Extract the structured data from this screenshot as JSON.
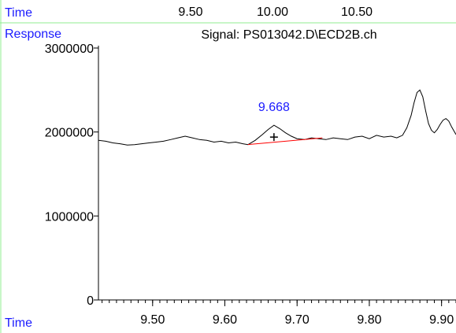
{
  "top_strip": {
    "time_label": "Time",
    "ticks": [
      9.5,
      10.0,
      10.5
    ],
    "tick_labels": [
      "9.50",
      "10.00",
      "10.50"
    ]
  },
  "chart_data": {
    "type": "line",
    "title": "Signal: PS013042.D\\ECD2B.ch",
    "ylabel": "Response",
    "xlabel": "Time",
    "xlim": [
      9.425,
      9.92
    ],
    "ylim": [
      0,
      3000000
    ],
    "x_ticks": [
      9.5,
      9.6,
      9.7,
      9.8,
      9.9
    ],
    "x_tick_labels": [
      "9.50",
      "9.60",
      "9.70",
      "9.80",
      "9.90"
    ],
    "y_ticks": [
      0,
      1000000,
      2000000,
      3000000
    ],
    "y_tick_labels": [
      "0",
      "1000000",
      "2000000",
      "3000000"
    ],
    "series": [
      {
        "x": [
          9.425,
          9.435,
          9.445,
          9.455,
          9.465,
          9.475,
          9.485,
          9.495,
          9.505,
          9.515,
          9.525,
          9.535,
          9.545,
          9.555,
          9.565,
          9.575,
          9.585,
          9.595,
          9.605,
          9.615,
          9.625,
          9.632,
          9.642,
          9.652,
          9.66,
          9.668,
          9.676,
          9.684,
          9.692,
          9.7,
          9.71,
          9.72,
          9.73,
          9.74,
          9.75,
          9.76,
          9.77,
          9.78,
          9.79,
          9.8,
          9.81,
          9.82,
          9.83,
          9.838,
          9.846,
          9.852,
          9.858,
          9.862,
          9.866,
          9.87,
          9.874,
          9.878,
          9.882,
          9.886,
          9.89,
          9.894,
          9.898,
          9.902,
          9.906,
          9.91,
          9.914,
          9.918,
          9.92
        ],
        "y": [
          1900000,
          1890000,
          1870000,
          1860000,
          1845000,
          1850000,
          1860000,
          1870000,
          1880000,
          1890000,
          1910000,
          1930000,
          1950000,
          1930000,
          1910000,
          1900000,
          1880000,
          1890000,
          1870000,
          1880000,
          1860000,
          1850000,
          1900000,
          1970000,
          2030000,
          2080000,
          2040000,
          1990000,
          1950000,
          1920000,
          1910000,
          1930000,
          1920000,
          1910000,
          1930000,
          1920000,
          1910000,
          1940000,
          1950000,
          1920000,
          1960000,
          1940000,
          1950000,
          1930000,
          1960000,
          2050000,
          2200000,
          2350000,
          2470000,
          2500000,
          2420000,
          2250000,
          2100000,
          2020000,
          1990000,
          2030000,
          2090000,
          2140000,
          2160000,
          2130000,
          2060000,
          2000000,
          1970000
        ]
      }
    ],
    "peak": {
      "label": "9.668",
      "time": 9.668,
      "response": 2080000
    },
    "baseline": {
      "x": [
        9.632,
        9.735
      ],
      "y": [
        1850000,
        1930000
      ]
    },
    "colors": {
      "axis_text": "#1a1aff",
      "trace": "#000000",
      "baseline": "#ff0000",
      "frame": "#90ee90"
    }
  }
}
